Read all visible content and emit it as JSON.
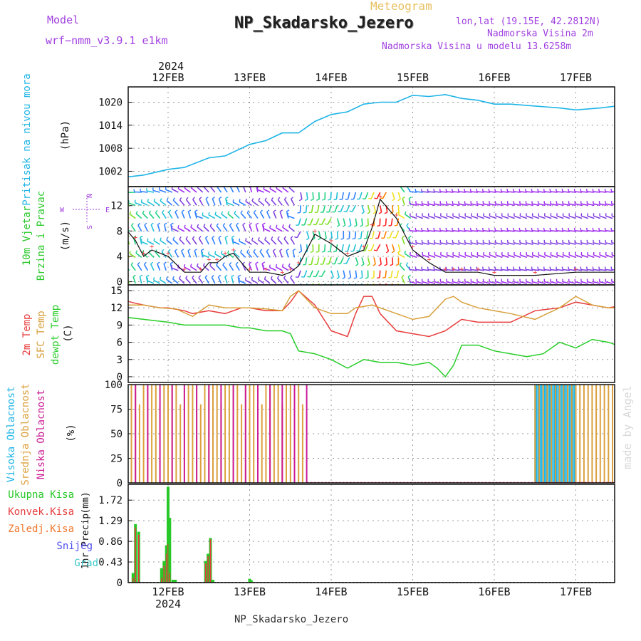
{
  "header": {
    "model_label": "Model",
    "model_name": "wrf−nmm_v3.9.1  e1km",
    "subtitle": "Meteogram",
    "title": "NP_Skadarsko_Jezero",
    "lonlat": "lon,lat (19.15E, 42.2812N)",
    "altitude": "Nadmorska Visina 2m",
    "model_altitude": "Nadmorska Visina u modelu 13.6258m",
    "footer_station": "NP_Skadarsko_Jezero",
    "watermark": "made by Angel"
  },
  "colors": {
    "pressure": "#1eb4e6",
    "temp2m": "#e83c3c",
    "sfc": "#d7a03c",
    "dewpt": "#28cd28",
    "high_cloud": "#1eb4e6",
    "mid_cloud": "#dca03c",
    "low_cloud": "#cc1c96",
    "total_precip": "#28c828",
    "conv_precip": "#e63c3c",
    "freezing": "#f0782d",
    "snow": "#5050f0",
    "hail": "#3cc8c8",
    "purple": "#a040e0"
  },
  "chart_data": [
    {
      "panel": "pressure",
      "type": "line",
      "ylabel": "Pritisak na nivou mora",
      "unit": "(hPa)",
      "yticks": [
        1002,
        1008,
        1014,
        1020
      ],
      "ylim": [
        998,
        1024
      ],
      "x_days": [
        {
          "day": "12FEB",
          "year": "2024"
        },
        {
          "day": "13FEB"
        },
        {
          "day": "14FEB"
        },
        {
          "day": "15FEB"
        },
        {
          "day": "16FEB"
        },
        {
          "day": "17FEB"
        }
      ],
      "x": [
        -0.6,
        -0.5,
        -0.3,
        0.0,
        0.2,
        0.5,
        0.7,
        0.9,
        1.0,
        1.2,
        1.4,
        1.6,
        1.8,
        2.0,
        2.2,
        2.4,
        2.6,
        2.8,
        3.0,
        3.2,
        3.4,
        3.6,
        3.8,
        4.0,
        4.2,
        4.5,
        4.8,
        5.0,
        5.3,
        5.5,
        5.8
      ],
      "values": [
        1000,
        1000.5,
        1001,
        1002.5,
        1003,
        1005.5,
        1006,
        1008,
        1009,
        1010,
        1012,
        1012,
        1015,
        1016.8,
        1017.5,
        1019.5,
        1020,
        1020,
        1021.8,
        1021.5,
        1022,
        1021,
        1020.5,
        1019.5,
        1019.5,
        1019,
        1018.5,
        1018,
        1018.5,
        1019,
        1019
      ]
    },
    {
      "panel": "wind",
      "type": "line",
      "ylabel": "10m Vjetar Brzina i Pravac",
      "unit": "(m/s)",
      "compass": [
        "N",
        "S",
        "W",
        "E"
      ],
      "yticks": [
        0,
        4,
        8,
        12
      ],
      "ylim": [
        -0.5,
        15
      ],
      "x": [
        -0.6,
        -0.5,
        -0.4,
        -0.3,
        -0.2,
        0.0,
        0.2,
        0.4,
        0.5,
        0.6,
        0.7,
        0.8,
        1.0,
        1.2,
        1.4,
        1.5,
        1.6,
        1.8,
        2.0,
        2.2,
        2.4,
        2.5,
        2.6,
        2.8,
        3.0,
        3.2,
        3.4,
        3.5,
        3.6,
        3.8,
        4.0,
        4.5,
        5.0,
        5.5,
        5.8
      ],
      "values": [
        5,
        8,
        6.5,
        4,
        5,
        4,
        1.5,
        1.5,
        3,
        3,
        4,
        4.5,
        1.5,
        1.5,
        1,
        1.5,
        2.5,
        7.5,
        6,
        4,
        5,
        8.5,
        13,
        10,
        5,
        3,
        1.5,
        1.5,
        1.5,
        1.5,
        1,
        1,
        1.5,
        1.5,
        2.5
      ]
    },
    {
      "panel": "temperature",
      "type": "line",
      "ylabel": "2m Temp / SFC Temp / dewpt Temp",
      "unit": "(C)",
      "yticks": [
        0,
        3,
        6,
        9,
        12,
        15
      ],
      "ylim": [
        -1,
        16
      ],
      "series": [
        {
          "name": "2m Temp",
          "x": [
            -0.6,
            -0.4,
            -0.3,
            -0.1,
            0.0,
            0.2,
            0.3,
            0.5,
            0.7,
            0.9,
            1.0,
            1.2,
            1.4,
            1.5,
            1.6,
            1.8,
            2.0,
            2.2,
            2.3,
            2.4,
            2.5,
            2.6,
            2.8,
            3.0,
            3.2,
            3.4,
            3.6,
            3.8,
            4.0,
            4.2,
            4.5,
            4.8,
            5.0,
            5.2,
            5.4,
            5.6,
            5.7,
            5.8
          ],
          "values": [
            13.5,
            12.8,
            12.5,
            12,
            12,
            11.5,
            11,
            11.5,
            11,
            12,
            12,
            11.5,
            11.5,
            13,
            15,
            12.5,
            8,
            7,
            11,
            14,
            14,
            11,
            8,
            7.5,
            7,
            8,
            10,
            9.5,
            9.5,
            9.5,
            11.5,
            12,
            13,
            12.5,
            12,
            12.5,
            13.5,
            12
          ]
        },
        {
          "name": "SFC Temp",
          "x": [
            -0.6,
            -0.3,
            -0.1,
            0.1,
            0.3,
            0.5,
            0.7,
            0.9,
            1.0,
            1.2,
            1.4,
            1.5,
            1.6,
            1.8,
            2.0,
            2.2,
            2.3,
            2.5,
            2.7,
            3.0,
            3.2,
            3.4,
            3.5,
            3.6,
            3.8,
            4.0,
            4.2,
            4.5,
            4.8,
            5.0,
            5.2,
            5.4,
            5.6,
            5.7,
            5.8
          ],
          "values": [
            12.5,
            12.5,
            12,
            11.8,
            10.5,
            12.5,
            12,
            12,
            12,
            11.8,
            11.5,
            14,
            15,
            12,
            11,
            11,
            12,
            12.5,
            11.5,
            10,
            10.5,
            13.5,
            14,
            13,
            12,
            11.5,
            11,
            10,
            12,
            14,
            12.5,
            12,
            12,
            15,
            12.5
          ]
        },
        {
          "name": "dewpt Temp",
          "x": [
            -0.6,
            -0.3,
            0.0,
            0.2,
            0.5,
            0.7,
            0.9,
            1.0,
            1.2,
            1.4,
            1.5,
            1.6,
            1.8,
            2.0,
            2.2,
            2.4,
            2.6,
            2.8,
            3.0,
            3.2,
            3.3,
            3.4,
            3.5,
            3.6,
            3.8,
            4.0,
            4.2,
            4.4,
            4.6,
            4.8,
            5.0,
            5.2,
            5.4,
            5.6,
            5.8
          ],
          "values": [
            10.5,
            10,
            9.5,
            9,
            9,
            9,
            8.5,
            8.5,
            8,
            8,
            7.5,
            4.5,
            4,
            3,
            1.5,
            3,
            2.5,
            2.5,
            2,
            2.5,
            1.5,
            0,
            2,
            5.5,
            5.5,
            4.5,
            4,
            3.5,
            4,
            6,
            5,
            6.5,
            6,
            5,
            7.5
          ]
        }
      ]
    },
    {
      "panel": "clouds",
      "type": "bar",
      "ylabel": "Visoka Oblacnost / Srednja Oblacnost / Niska Oblacnost",
      "unit": "(%)",
      "yticks": [
        0,
        25,
        50,
        75,
        100
      ],
      "ylim": [
        0,
        100
      ],
      "series": [
        {
          "name": "Visoka Oblacnost",
          "start": 4.5,
          "end": 5.0,
          "step": 0.02,
          "value": 100
        },
        {
          "name": "Srednja Oblacnost",
          "start": -0.5,
          "end": 1.7,
          "step": 0.05,
          "value": 100
        },
        {
          "name": "Niska Oblacnost",
          "start": -0.4,
          "end": 1.7,
          "step": 0.15,
          "value": 100
        },
        {
          "name": "Srednja Oblacnost late",
          "start": 4.5,
          "end": 5.85,
          "step": 0.05,
          "value": 100
        }
      ]
    },
    {
      "panel": "precip",
      "type": "bar",
      "ylabel": "1hr Precip",
      "unit": "(mm)",
      "yticks": [
        0,
        0.43,
        0.86,
        1.29,
        1.72
      ],
      "ylim": [
        0,
        2.05
      ],
      "legend": [
        "Ukupna Kisa",
        "Konvek.Kisa",
        "Zaledj.Kisa",
        "Snijeg",
        "Grad"
      ],
      "x": [
        -0.43,
        -0.4,
        -0.36,
        -0.08,
        -0.05,
        -0.02,
        0.0,
        0.02,
        0.06,
        0.09,
        0.46,
        0.49,
        0.52,
        0.55,
        1.0,
        1.02
      ],
      "values": [
        0.2,
        1.22,
        1.06,
        0.3,
        0.45,
        0.78,
        2.0,
        1.35,
        0.06,
        0.06,
        0.45,
        0.6,
        0.93,
        0.06,
        0.08,
        0.05
      ],
      "conv_values": [
        0.1,
        1.15,
        1.0,
        0.1,
        0.35,
        0.6,
        0.8,
        0.2,
        0.0,
        0.0,
        0.4,
        0.55,
        0.9,
        0.0,
        0.0,
        0.0
      ]
    }
  ]
}
